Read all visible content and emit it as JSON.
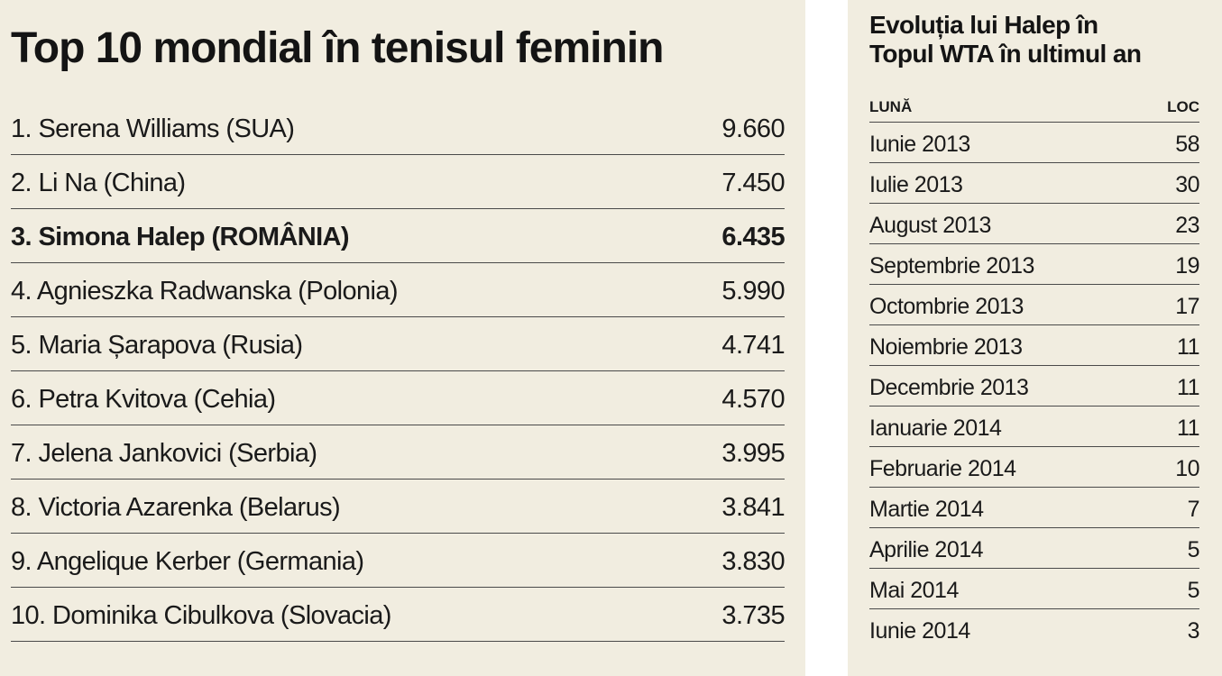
{
  "left": {
    "title": "Top 10 mondial în tenisul feminin",
    "rankings": [
      {
        "name": "1. Serena Williams (SUA)",
        "points": "9.660",
        "highlight": false
      },
      {
        "name": "2. Li Na (China)",
        "points": "7.450",
        "highlight": false
      },
      {
        "name": "3. Simona Halep (ROMÂNIA)",
        "points": "6.435",
        "highlight": true
      },
      {
        "name": "4. Agnieszka Radwanska (Polonia)",
        "points": "5.990",
        "highlight": false
      },
      {
        "name": "5. Maria Șarapova (Rusia)",
        "points": "4.741",
        "highlight": false
      },
      {
        "name": "6. Petra Kvitova (Cehia)",
        "points": "4.570",
        "highlight": false
      },
      {
        "name": "7. Jelena Jankovici (Serbia)",
        "points": "3.995",
        "highlight": false
      },
      {
        "name": "8. Victoria Azarenka (Belarus)",
        "points": "3.841",
        "highlight": false
      },
      {
        "name": "9. Angelique Kerber (Germania)",
        "points": "3.830",
        "highlight": false
      },
      {
        "name": "10. Dominika Cibulkova (Slovacia)",
        "points": "3.735",
        "highlight": false
      }
    ]
  },
  "right": {
    "title_line1": "Evoluția lui Halep în",
    "title_line2": "Topul WTA în ultimul an",
    "header_month": "LUNĂ",
    "header_place": "LOC",
    "rows": [
      {
        "month": "Iunie 2013",
        "place": "58"
      },
      {
        "month": "Iulie 2013",
        "place": "30"
      },
      {
        "month": "August 2013",
        "place": "23"
      },
      {
        "month": "Septembrie 2013",
        "place": "19"
      },
      {
        "month": "Octombrie 2013",
        "place": "17"
      },
      {
        "month": "Noiembrie 2013",
        "place": "11"
      },
      {
        "month": "Decembrie 2013",
        "place": "11"
      },
      {
        "month": "Ianuarie 2014",
        "place": "11"
      },
      {
        "month": "Februarie 2014",
        "place": "10"
      },
      {
        "month": "Martie 2014",
        "place": "7"
      },
      {
        "month": "Aprilie 2014",
        "place": "5"
      },
      {
        "month": "Mai 2014",
        "place": "5"
      },
      {
        "month": "Iunie 2014",
        "place": "3"
      }
    ]
  },
  "colors": {
    "panel_background": "#f1ede0",
    "rule": "#4a4a4a",
    "text": "#1a1a1a"
  }
}
